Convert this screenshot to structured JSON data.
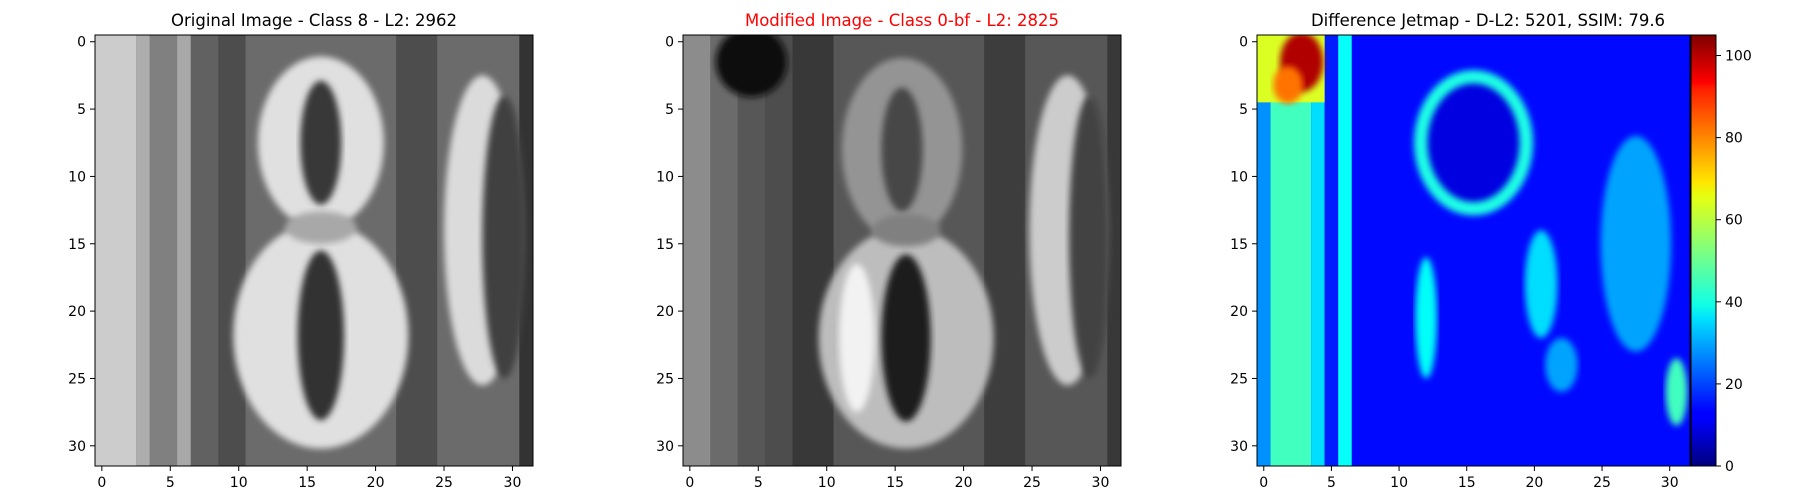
{
  "chart_data": [
    {
      "type": "heatmap",
      "title": "Original Image - Class 8 - L2: 2962",
      "title_color": "#000000",
      "colormap": "gray",
      "image_size": [
        32,
        32
      ],
      "x_ticks": [
        0,
        5,
        10,
        15,
        20,
        25,
        30
      ],
      "y_ticks": [
        0,
        5,
        10,
        15,
        20,
        25,
        30
      ],
      "content": "grayscale house-number crop showing digit 8 with part of another digit at the right edge",
      "layers": [
        {
          "kind": "rect",
          "x0": -0.5,
          "x1": 31.5,
          "y0": -0.5,
          "y1": 31.5,
          "level": 0.42
        },
        {
          "kind": "rect",
          "x0": -0.5,
          "x1": 2.5,
          "y0": -0.5,
          "y1": 31.5,
          "level": 0.8
        },
        {
          "kind": "rect",
          "x0": 2.5,
          "x1": 3.5,
          "y0": -0.5,
          "y1": 31.5,
          "level": 0.68
        },
        {
          "kind": "rect",
          "x0": 3.5,
          "x1": 5.5,
          "y0": -0.5,
          "y1": 31.5,
          "level": 0.5
        },
        {
          "kind": "rect",
          "x0": 5.5,
          "x1": 6.5,
          "y0": -0.5,
          "y1": 31.5,
          "level": 0.66
        },
        {
          "kind": "rect",
          "x0": 6.5,
          "x1": 8.5,
          "y0": -0.5,
          "y1": 31.5,
          "level": 0.38
        },
        {
          "kind": "rect",
          "x0": 8.5,
          "x1": 10.5,
          "y0": -0.5,
          "y1": 31.5,
          "level": 0.3
        },
        {
          "kind": "rect",
          "x0": 21.5,
          "x1": 24.5,
          "y0": -0.5,
          "y1": 31.5,
          "level": 0.3
        },
        {
          "kind": "rect",
          "x0": 30.5,
          "x1": 31.5,
          "y0": -0.5,
          "y1": 31.5,
          "level": 0.2
        },
        {
          "kind": "ellipse",
          "cx": 16,
          "cy": 7.5,
          "rx": 4.6,
          "ry": 6.4,
          "level": 0.88
        },
        {
          "kind": "ellipse",
          "cx": 16,
          "cy": 7.5,
          "rx": 1.5,
          "ry": 4.6,
          "level": 0.22
        },
        {
          "kind": "ellipse",
          "cx": 16,
          "cy": 21.8,
          "rx": 6.4,
          "ry": 8.4,
          "level": 0.88
        },
        {
          "kind": "ellipse",
          "cx": 16,
          "cy": 21.8,
          "rx": 1.7,
          "ry": 6.3,
          "level": 0.2
        },
        {
          "kind": "ellipse",
          "cx": 16,
          "cy": 13.8,
          "rx": 2.6,
          "ry": 1.2,
          "level": 0.66
        },
        {
          "kind": "ellipse",
          "cx": 27.8,
          "cy": 14,
          "rx": 2.8,
          "ry": 11.5,
          "level": 0.86
        },
        {
          "kind": "ellipse",
          "cx": 29.4,
          "cy": 14.5,
          "rx": 1.6,
          "ry": 10.5,
          "level": 0.25
        }
      ]
    },
    {
      "type": "heatmap",
      "title": "Modified Image - Class 0-bf - L2: 2825",
      "title_color": "#ff0000",
      "colormap": "gray",
      "image_size": [
        32,
        32
      ],
      "x_ticks": [
        0,
        5,
        10,
        15,
        20,
        25,
        30
      ],
      "y_ticks": [
        0,
        5,
        10,
        15,
        20,
        25,
        30
      ],
      "content": "perturbed version of the same crop, darker with a dark patch at top-left",
      "layers": [
        {
          "kind": "rect",
          "x0": -0.5,
          "x1": 31.5,
          "y0": -0.5,
          "y1": 31.5,
          "level": 0.34
        },
        {
          "kind": "rect",
          "x0": -0.5,
          "x1": 1.5,
          "y0": -0.5,
          "y1": 31.5,
          "level": 0.55
        },
        {
          "kind": "rect",
          "x0": 1.5,
          "x1": 3.5,
          "y0": -0.5,
          "y1": 31.5,
          "level": 0.42
        },
        {
          "kind": "rect",
          "x0": 5.5,
          "x1": 7.5,
          "y0": -0.5,
          "y1": 31.5,
          "level": 0.3
        },
        {
          "kind": "rect",
          "x0": 7.5,
          "x1": 10.5,
          "y0": -0.5,
          "y1": 31.5,
          "level": 0.22
        },
        {
          "kind": "rect",
          "x0": 21.5,
          "x1": 24.5,
          "y0": -0.5,
          "y1": 31.5,
          "level": 0.24
        },
        {
          "kind": "rect",
          "x0": 30.5,
          "x1": 31.5,
          "y0": -0.5,
          "y1": 31.5,
          "level": 0.22
        },
        {
          "kind": "ellipse",
          "cx": 4.5,
          "cy": 1.5,
          "rx": 2.6,
          "ry": 2.6,
          "level": 0.06
        },
        {
          "kind": "ellipse",
          "cx": 15.5,
          "cy": 8,
          "rx": 4.4,
          "ry": 6.8,
          "level": 0.58
        },
        {
          "kind": "ellipse",
          "cx": 15.5,
          "cy": 8,
          "rx": 1.5,
          "ry": 4.6,
          "level": 0.28
        },
        {
          "kind": "ellipse",
          "cx": 15.8,
          "cy": 22,
          "rx": 6.4,
          "ry": 8.2,
          "level": 0.74
        },
        {
          "kind": "ellipse",
          "cx": 15.8,
          "cy": 22,
          "rx": 1.8,
          "ry": 6.2,
          "level": 0.12
        },
        {
          "kind": "ellipse",
          "cx": 12.2,
          "cy": 22,
          "rx": 1.3,
          "ry": 5.5,
          "level": 0.95
        },
        {
          "kind": "ellipse",
          "cx": 15.8,
          "cy": 14,
          "rx": 2.5,
          "ry": 1.2,
          "level": 0.5
        },
        {
          "kind": "ellipse",
          "cx": 27.6,
          "cy": 14,
          "rx": 2.8,
          "ry": 11.5,
          "level": 0.8
        },
        {
          "kind": "ellipse",
          "cx": 29.2,
          "cy": 14.5,
          "rx": 1.5,
          "ry": 10.5,
          "level": 0.26
        }
      ]
    },
    {
      "type": "heatmap",
      "title": "Difference Jetmap - D-L2: 5201, SSIM: 79.6",
      "title_color": "#000000",
      "colormap": "jet",
      "image_size": [
        32,
        32
      ],
      "x_ticks": [
        0,
        5,
        10,
        15,
        20,
        25,
        30
      ],
      "y_ticks": [
        0,
        5,
        10,
        15,
        20,
        25,
        30
      ],
      "colorbar": {
        "min": 0,
        "max": 105,
        "ticks": [
          0,
          20,
          40,
          60,
          80,
          100
        ]
      },
      "content": "absolute pixel difference, hottest (about 100) at top-left, cyan-green strokes along the digit outlines",
      "layers": [
        {
          "kind": "rect",
          "x0": -0.5,
          "x1": 31.5,
          "y0": -0.5,
          "y1": 31.5,
          "value": 14
        },
        {
          "kind": "rect",
          "x0": -0.5,
          "x1": 0.5,
          "y0": -0.5,
          "y1": 31.5,
          "value": 28
        },
        {
          "kind": "rect",
          "x0": 0.5,
          "x1": 3.5,
          "y0": -0.5,
          "y1": 31.5,
          "value": 46
        },
        {
          "kind": "rect",
          "x0": 3.5,
          "x1": 4.5,
          "y0": -0.5,
          "y1": 31.5,
          "value": 36
        },
        {
          "kind": "rect",
          "x0": 4.5,
          "x1": 5.5,
          "y0": -0.5,
          "y1": 31.5,
          "value": 16
        },
        {
          "kind": "rect",
          "x0": 5.5,
          "x1": 6.5,
          "y0": -0.5,
          "y1": 31.5,
          "value": 40
        },
        {
          "kind": "rect",
          "x0": -0.5,
          "x1": 4.5,
          "y0": -0.5,
          "y1": 4.5,
          "value": 62
        },
        {
          "kind": "ellipse",
          "cx": 2.8,
          "cy": 1.5,
          "rx": 1.6,
          "ry": 2.2,
          "value": 100
        },
        {
          "kind": "ellipse",
          "cx": 1.8,
          "cy": 3.2,
          "rx": 1.1,
          "ry": 1.4,
          "value": 80
        },
        {
          "kind": "ellipse",
          "cx": 15.5,
          "cy": 7.5,
          "rx": 4.4,
          "ry": 5.4,
          "value": 42
        },
        {
          "kind": "ellipse",
          "cx": 15.5,
          "cy": 7.5,
          "rx": 3.4,
          "ry": 4.4,
          "value": 10
        },
        {
          "kind": "ellipse",
          "cx": 12,
          "cy": 20.5,
          "rx": 0.8,
          "ry": 4.5,
          "value": 40
        },
        {
          "kind": "ellipse",
          "cx": 20.5,
          "cy": 18,
          "rx": 1.2,
          "ry": 4,
          "value": 36
        },
        {
          "kind": "ellipse",
          "cx": 22,
          "cy": 24,
          "rx": 1.2,
          "ry": 2,
          "value": 30
        },
        {
          "kind": "ellipse",
          "cx": 27.5,
          "cy": 15,
          "rx": 2.6,
          "ry": 8,
          "value": 30
        },
        {
          "kind": "ellipse",
          "cx": 30.5,
          "cy": 26,
          "rx": 0.8,
          "ry": 2.5,
          "value": 46
        }
      ]
    }
  ]
}
